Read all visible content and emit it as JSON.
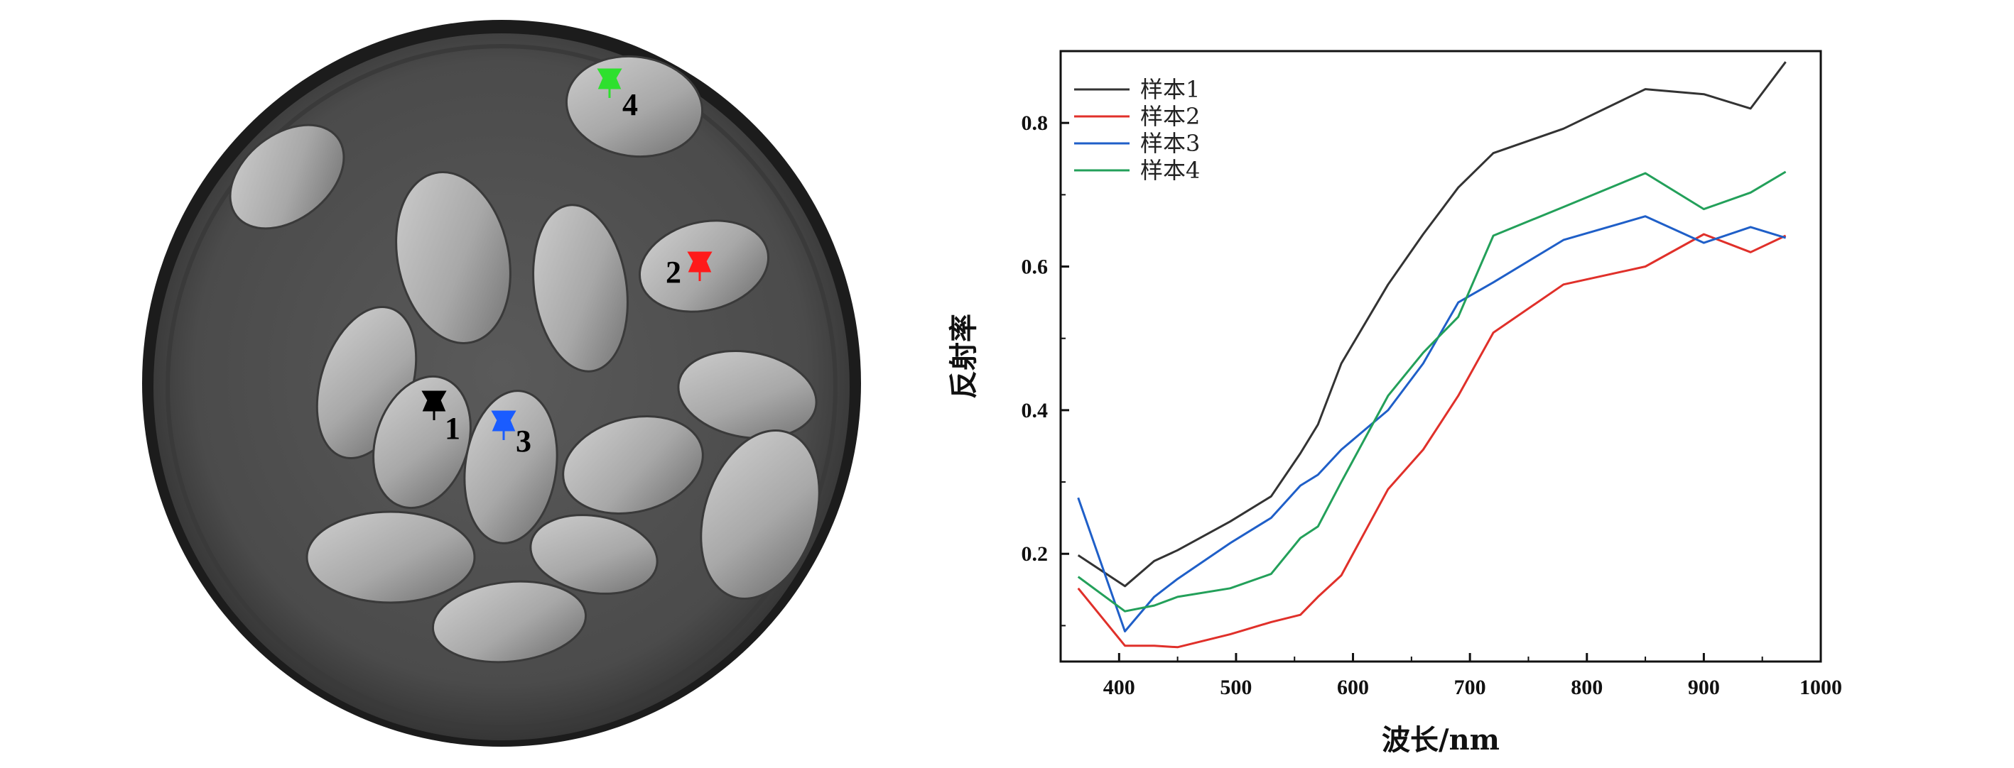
{
  "photo": {
    "markers": [
      {
        "label": "1",
        "color": "#000000"
      },
      {
        "label": "2",
        "color": "#ff1a1a"
      },
      {
        "label": "3",
        "color": "#1a5cff"
      },
      {
        "label": "4",
        "color": "#2ee02e"
      }
    ]
  },
  "chart_data": {
    "type": "line",
    "xlabel": "波长/nm",
    "ylabel": "反射率",
    "xlim": [
      350,
      1000
    ],
    "ylim": [
      0.05,
      0.9
    ],
    "xticks": [
      400,
      500,
      600,
      700,
      800,
      900,
      1000
    ],
    "yticks": [
      0.2,
      0.4,
      0.6,
      0.8
    ],
    "x_tick_labels": [
      "400",
      "500",
      "600",
      "700",
      "800",
      "900",
      "1000"
    ],
    "y_tick_labels": [
      "0.2",
      "0.4",
      "0.6",
      "0.8"
    ],
    "grid": false,
    "legend_position": "top-left",
    "series": [
      {
        "name": "样本1",
        "color": "#333333",
        "x": [
          365,
          405,
          430,
          450,
          495,
          530,
          555,
          570,
          590,
          630,
          660,
          690,
          720,
          780,
          850,
          900,
          940,
          970
        ],
        "y": [
          0.198,
          0.155,
          0.19,
          0.205,
          0.245,
          0.28,
          0.34,
          0.38,
          0.465,
          0.575,
          0.645,
          0.71,
          0.758,
          0.792,
          0.847,
          0.84,
          0.82,
          0.885
        ]
      },
      {
        "name": "样本2",
        "color": "#e0302a",
        "x": [
          365,
          405,
          430,
          450,
          495,
          530,
          555,
          570,
          590,
          630,
          660,
          690,
          720,
          780,
          850,
          900,
          940,
          970
        ],
        "y": [
          0.152,
          0.072,
          0.072,
          0.07,
          0.088,
          0.105,
          0.115,
          0.14,
          0.17,
          0.29,
          0.345,
          0.42,
          0.508,
          0.575,
          0.6,
          0.645,
          0.62,
          0.643
        ]
      },
      {
        "name": "样本3",
        "color": "#1f5fc8",
        "x": [
          365,
          405,
          430,
          450,
          495,
          530,
          555,
          570,
          590,
          630,
          660,
          690,
          720,
          780,
          850,
          900,
          940,
          970
        ],
        "y": [
          0.278,
          0.092,
          0.14,
          0.165,
          0.215,
          0.25,
          0.295,
          0.31,
          0.345,
          0.4,
          0.465,
          0.55,
          0.578,
          0.637,
          0.67,
          0.633,
          0.655,
          0.64
        ]
      },
      {
        "name": "样本4",
        "color": "#23a05a",
        "x": [
          365,
          405,
          430,
          450,
          495,
          530,
          555,
          570,
          590,
          630,
          660,
          690,
          720,
          780,
          850,
          900,
          940,
          970
        ],
        "y": [
          0.168,
          0.12,
          0.128,
          0.14,
          0.152,
          0.172,
          0.222,
          0.238,
          0.3,
          0.42,
          0.48,
          0.53,
          0.643,
          0.683,
          0.73,
          0.68,
          0.703,
          0.732
        ]
      }
    ]
  }
}
